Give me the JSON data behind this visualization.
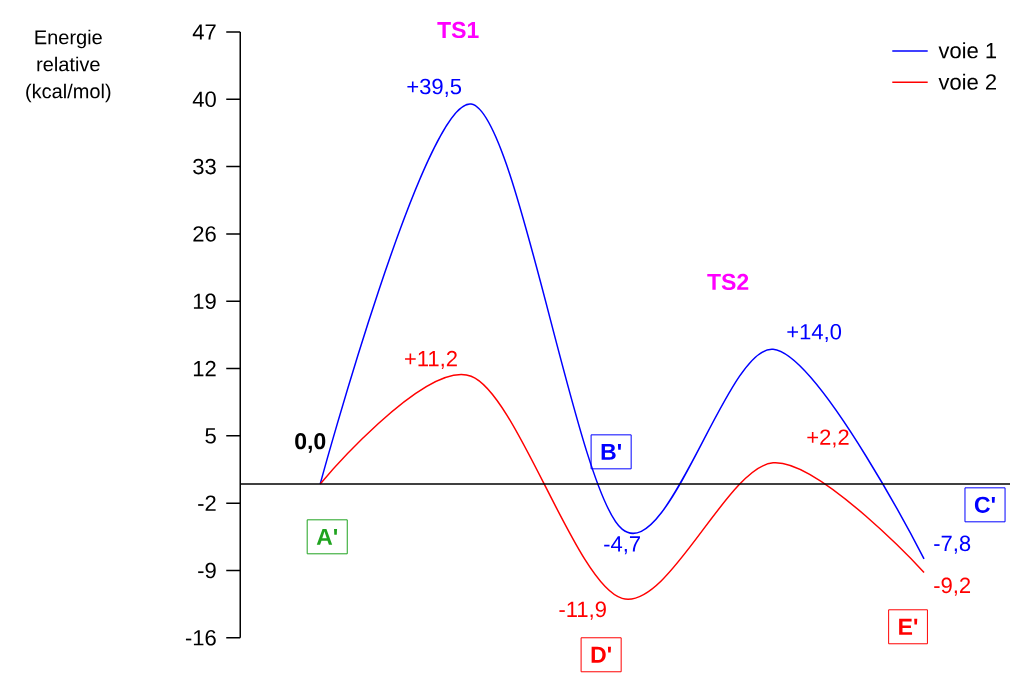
{
  "chart_data": {
    "type": "line",
    "ylabel": "Energie relative (kcal/mol)",
    "categories": [
      null,
      null,
      null,
      null,
      null
    ],
    "series": [
      {
        "name": "voie 1",
        "color": "#0000ff",
        "values": [
          0,
          39.5,
          -4.7,
          14.0,
          -7.8
        ],
        "value_labels": [
          null,
          "+39,5",
          "-4,7",
          "+14,0",
          "-7,8"
        ]
      },
      {
        "name": "voie 2",
        "color": "#ff0000",
        "values": [
          0,
          11.2,
          -11.9,
          2.2,
          -9.2
        ],
        "value_labels": [
          null,
          "+11,2",
          "-11,9",
          "+2,2",
          "-9,2"
        ]
      }
    ],
    "ylim": [
      -16,
      47
    ],
    "yticks": [
      -16,
      -9,
      -2,
      5,
      12,
      19,
      26,
      33,
      40,
      47
    ],
    "ref_lines": [
      {
        "axis": "y",
        "value": 0,
        "color": "#000000"
      }
    ],
    "annotations": [
      "0,0",
      "A'",
      "TS1",
      "B'",
      "D'",
      "TS2",
      "C'",
      "E'"
    ],
    "legend": "top right",
    "grid": false
  }
}
